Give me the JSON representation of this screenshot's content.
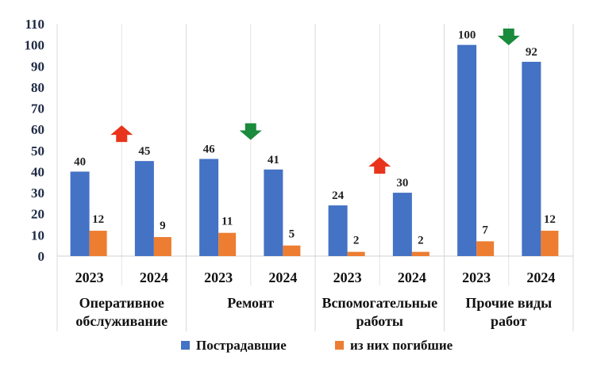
{
  "chart_data": {
    "type": "bar",
    "ylim": [
      0,
      110
    ],
    "yticks": [
      0,
      10,
      20,
      30,
      40,
      50,
      60,
      70,
      80,
      90,
      100,
      110
    ],
    "grid": "vertical group separators",
    "groups": [
      {
        "label_lines": [
          "Оперативное",
          "обслуживание"
        ],
        "years": [
          "2023",
          "2024"
        ],
        "trend": "up"
      },
      {
        "label_lines": [
          "Ремонт"
        ],
        "years": [
          "2023",
          "2024"
        ],
        "trend": "down"
      },
      {
        "label_lines": [
          "Вспомогательные",
          "работы"
        ],
        "years": [
          "2023",
          "2024"
        ],
        "trend": "up"
      },
      {
        "label_lines": [
          "Прочие виды",
          "работ"
        ],
        "years": [
          "2023",
          "2024"
        ],
        "trend": "down"
      }
    ],
    "series": [
      {
        "name": "Пострадавшие",
        "color": "#4472c4",
        "values": [
          40,
          45,
          46,
          41,
          24,
          30,
          100,
          92
        ]
      },
      {
        "name": "из них погибшие",
        "color": "#ed7d31",
        "values": [
          12,
          9,
          11,
          5,
          2,
          2,
          7,
          12
        ]
      }
    ],
    "trend_colors": {
      "up": "#e8341c",
      "down": "#1a8a3c"
    },
    "legend_position": "bottom"
  }
}
